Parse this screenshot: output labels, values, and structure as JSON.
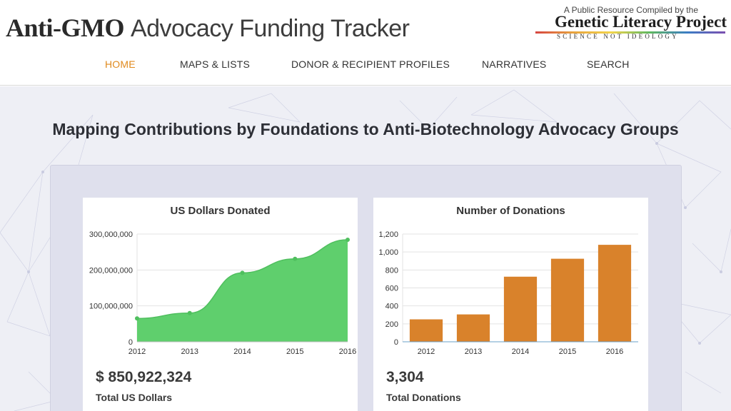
{
  "header": {
    "title_bold": "Anti-GMO",
    "title_light": "Advocacy Funding Tracker",
    "compiled_by": "A Public Resource Compiled by the",
    "org_name": "Genetic Literacy Project",
    "org_tagline": "SCIENCE NOT IDEOLOGY"
  },
  "nav": [
    {
      "label": "HOME",
      "active": true
    },
    {
      "label": "MAPS & LISTS",
      "active": false
    },
    {
      "label": "DONOR & RECIPIENT PROFILES",
      "active": false
    },
    {
      "label": "NARRATIVES",
      "active": false
    },
    {
      "label": "SEARCH",
      "active": false
    }
  ],
  "hero": {
    "title": "Mapping Contributions by Foundations to Anti-Biotechnology Advocacy Groups"
  },
  "cards": [
    {
      "title": "US Dollars Donated",
      "value": "$ 850,922,324",
      "label": "Total US Dollars"
    },
    {
      "title": "Number of Donations",
      "value": "3,304",
      "label": "Total Donations"
    }
  ],
  "colors": {
    "accent": "#e08a1e",
    "area": "#5fcf6d",
    "bar": "#d9822b"
  },
  "chart_data": [
    {
      "type": "area",
      "title": "US Dollars Donated",
      "categories": [
        "2012",
        "2013",
        "2014",
        "2015",
        "2016"
      ],
      "values": [
        65000000,
        80000000,
        192000000,
        231000000,
        284000000
      ],
      "yticks": [
        "0",
        "100,000,000",
        "200,000,000",
        "300,000,000"
      ],
      "ylim": [
        0,
        300000000
      ],
      "grid": true
    },
    {
      "type": "bar",
      "title": "Number of Donations",
      "categories": [
        "2012",
        "2013",
        "2014",
        "2015",
        "2016"
      ],
      "values": [
        250,
        305,
        725,
        925,
        1080
      ],
      "yticks": [
        "0",
        "200",
        "400",
        "600",
        "800",
        "1,000",
        "1,200"
      ],
      "ylim": [
        0,
        1200
      ],
      "grid": true
    }
  ]
}
